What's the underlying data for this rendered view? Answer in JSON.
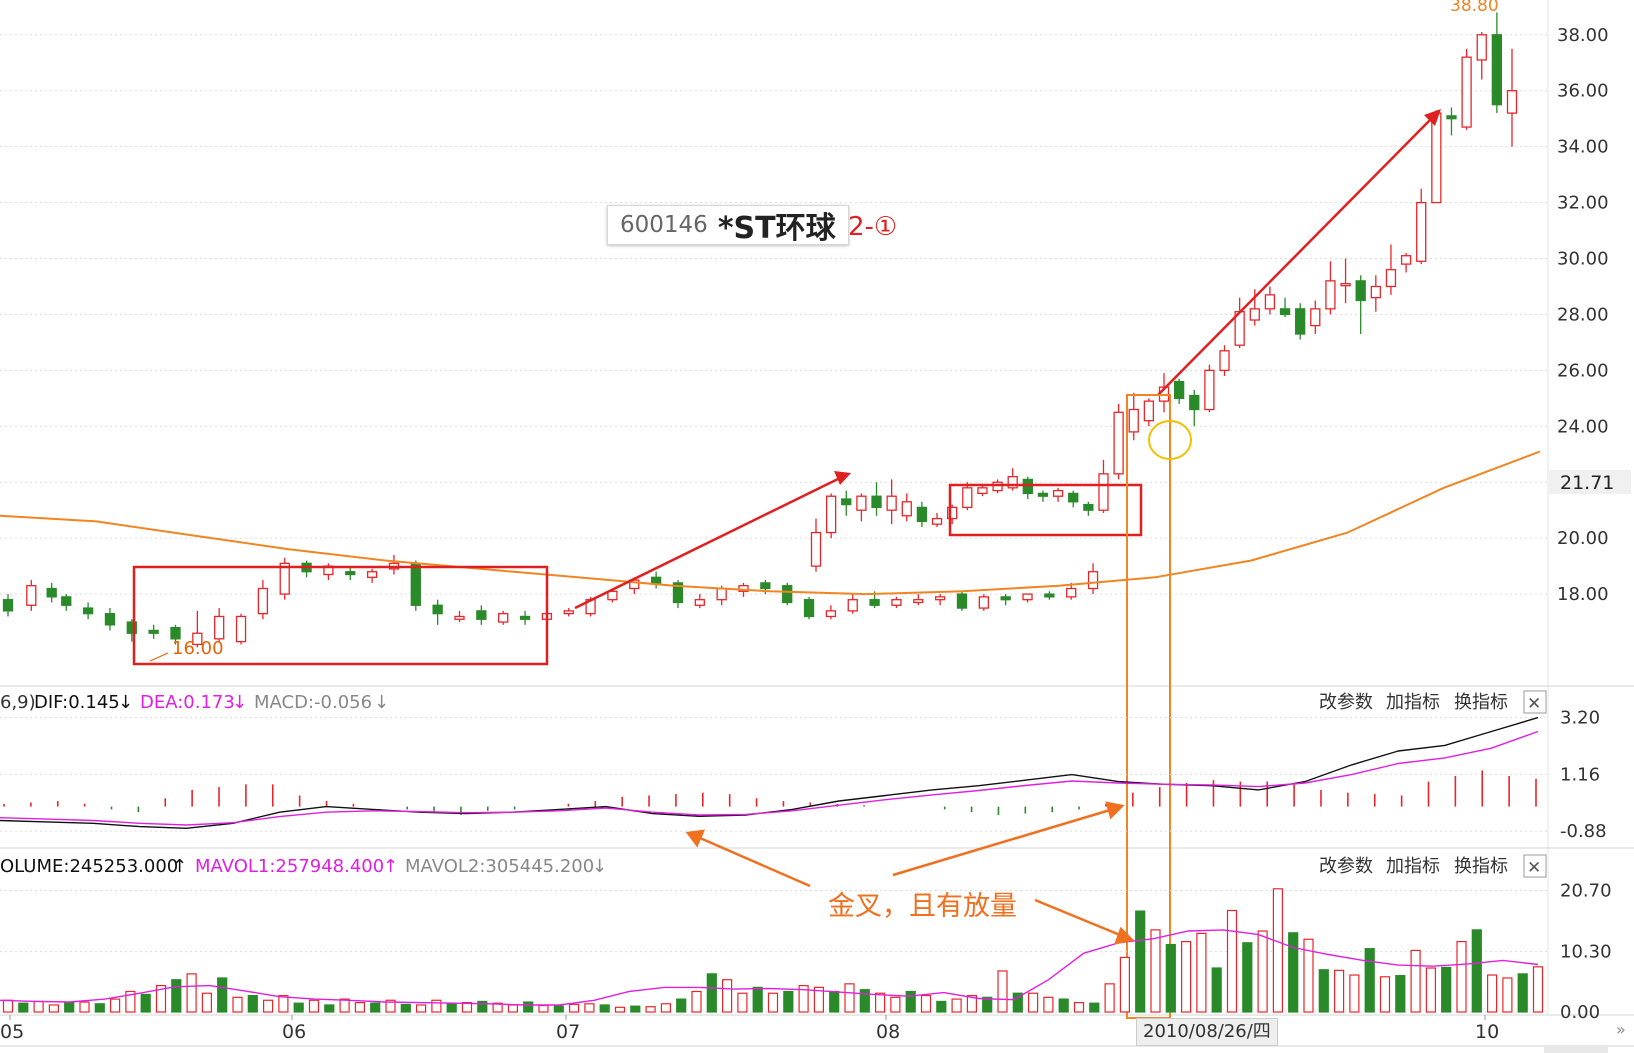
{
  "title": {
    "code": "600146",
    "name": "*ST环球",
    "figure_label": "2-①"
  },
  "annotation": "金叉，且有放量",
  "date_cursor": "2010/08/26/四",
  "price_marks": {
    "high_label": "38.80",
    "low_label": "16.00",
    "last_price": "21.71"
  },
  "toolbar_buttons": [
    "改参数",
    "加指标",
    "换指标"
  ],
  "close_symbol": "✕",
  "colors": {
    "up": "#e8262a",
    "down": "#2a8a2a",
    "ma": "#f08522",
    "dif": "#111111",
    "dea": "#e020e0",
    "box_red": "#e02020",
    "annot_orange": "#f07020",
    "circle": "#f0c000"
  },
  "chart_data": [
    {
      "type": "candlestick",
      "panel": "price",
      "ytick_labels": [
        "38.00",
        "36.00",
        "34.00",
        "32.00",
        "30.00",
        "28.00",
        "26.00",
        "24.00",
        "20.00",
        "18.00"
      ],
      "ylim": [
        15.5,
        38.6
      ],
      "xtick_labels": [
        "05",
        "06",
        "07",
        "08",
        "10"
      ],
      "x_positions": [
        0,
        1.6,
        3,
        4,
        5.5,
        7,
        8.5,
        10,
        11.5,
        13,
        14.5,
        16,
        17.5,
        19,
        20.5,
        22,
        23.5,
        25,
        26.5,
        28,
        29.5,
        31,
        32.5,
        34,
        35.5,
        37,
        38.5,
        40,
        41.5,
        43,
        44.5,
        46,
        47.5,
        49,
        50.5,
        52,
        53.5,
        55,
        56.5,
        58,
        59.5,
        61,
        62.5,
        64,
        65.5,
        67,
        68.5,
        70,
        71.5,
        73,
        74.5,
        76,
        77.5,
        79,
        80.5,
        82,
        83.5,
        85,
        86.5,
        88,
        89.5,
        91,
        92.5,
        94,
        95.5,
        97,
        98.5,
        100,
        101.5,
        103,
        104.5
      ],
      "candles": [
        [
          17.8,
          17.4,
          18,
          17.2
        ],
        [
          17.6,
          18.3,
          18.5,
          17.4
        ],
        [
          18.2,
          17.9,
          18.4,
          17.7
        ],
        [
          17.9,
          17.6,
          18,
          17.4
        ],
        [
          17.5,
          17.3,
          17.7,
          17.1
        ],
        [
          17.3,
          16.9,
          17.5,
          16.7
        ],
        [
          17,
          16.6,
          17.1,
          16.3
        ],
        [
          16.7,
          16.6,
          16.9,
          16.4
        ],
        [
          16.8,
          16.4,
          16.9,
          16.2
        ],
        [
          16.2,
          16.6,
          17.4,
          16.1
        ],
        [
          16.4,
          17.2,
          17.5,
          16.3
        ],
        [
          16.3,
          17.2,
          17.3,
          16.2
        ],
        [
          17.3,
          18.2,
          18.5,
          17.1
        ],
        [
          18,
          19.1,
          19.3,
          17.8
        ],
        [
          19.1,
          18.8,
          19.2,
          18.6
        ],
        [
          18.7,
          19,
          19.1,
          18.5
        ],
        [
          18.8,
          18.7,
          19,
          18.5
        ],
        [
          18.6,
          18.8,
          18.9,
          18.4
        ],
        [
          18.9,
          19.1,
          19.4,
          18.7
        ],
        [
          19.1,
          17.6,
          19.2,
          17.4
        ],
        [
          17.6,
          17.3,
          17.8,
          16.9
        ],
        [
          17.1,
          17.2,
          17.4,
          17
        ],
        [
          17.4,
          17.1,
          17.6,
          16.9
        ],
        [
          17,
          17.3,
          17.4,
          16.9
        ],
        [
          17.2,
          17.1,
          17.4,
          16.9
        ],
        [
          17.1,
          17.3,
          17.4,
          17
        ],
        [
          17.3,
          17.4,
          17.5,
          17.2
        ],
        [
          17.3,
          17.8,
          17.9,
          17.2
        ],
        [
          17.8,
          18.1,
          18.2,
          17.7
        ],
        [
          18.2,
          18.5,
          18.6,
          18
        ],
        [
          18.6,
          18.4,
          18.8,
          18.2
        ],
        [
          18.4,
          17.7,
          18.5,
          17.5
        ],
        [
          17.6,
          17.8,
          18,
          17.5
        ],
        [
          17.8,
          18.2,
          18.3,
          17.6
        ],
        [
          18.1,
          18.3,
          18.4,
          17.9
        ],
        [
          18.4,
          18.2,
          18.5,
          18
        ],
        [
          18.3,
          17.7,
          18.4,
          17.6
        ],
        [
          17.8,
          17.2,
          17.9,
          17.1
        ],
        [
          17.2,
          17.4,
          17.6,
          17.1
        ],
        [
          17.4,
          17.8,
          18,
          17.3
        ],
        [
          17.8,
          17.6,
          18.1,
          17.5
        ],
        [
          17.6,
          17.8,
          17.9,
          17.5
        ],
        [
          17.7,
          17.8,
          18,
          17.6
        ],
        [
          17.8,
          17.9,
          18,
          17.6
        ],
        [
          18,
          17.5,
          18.1,
          17.4
        ],
        [
          17.5,
          17.9,
          18,
          17.4
        ],
        [
          17.9,
          17.8,
          18,
          17.6
        ],
        [
          17.8,
          18,
          18,
          17.7
        ],
        [
          18,
          17.9,
          18.1,
          17.8
        ],
        [
          17.9,
          18.2,
          18.4,
          17.8
        ],
        [
          18.2,
          18.8,
          19.1,
          18
        ]
      ],
      "series": [
        {
          "name": "",
          "values": [
            20.8,
            20.6,
            20.1,
            19.6,
            19.2,
            18.9,
            18.6,
            18.3,
            18.1,
            18.0,
            18.1,
            18.3,
            18.6,
            19.2,
            20.2,
            21.8,
            23.1
          ]
        }
      ]
    },
    {
      "type": "macd",
      "panel": "macd",
      "legend_prefix": "6,9)",
      "dif_label": "DIF:0.145",
      "dea_label": "DEA:0.173",
      "macd_label": "MACD:-0.056",
      "arrow_down": "↓",
      "ytick_labels": [
        "3.20",
        "1.16",
        "-0.88"
      ],
      "ylim": [
        -1.2,
        3.4
      ],
      "dif": [
        -0.5,
        -0.55,
        -0.6,
        -0.72,
        -0.78,
        -0.6,
        -0.2,
        0.0,
        -0.1,
        -0.2,
        -0.25,
        -0.2,
        -0.1,
        0.0,
        -0.25,
        -0.35,
        -0.3,
        -0.1,
        0.2,
        0.4,
        0.6,
        0.75,
        0.95,
        1.15,
        0.9,
        0.8,
        0.75,
        0.6,
        0.9,
        1.5,
        2.0,
        2.2,
        2.7,
        3.2
      ],
      "dea": [
        -0.4,
        -0.45,
        -0.5,
        -0.6,
        -0.66,
        -0.58,
        -0.36,
        -0.2,
        -0.15,
        -0.18,
        -0.22,
        -0.2,
        -0.15,
        -0.05,
        -0.2,
        -0.3,
        -0.28,
        -0.15,
        0.05,
        0.25,
        0.42,
        0.58,
        0.76,
        0.92,
        0.85,
        0.8,
        0.78,
        0.72,
        0.85,
        1.15,
        1.55,
        1.75,
        2.1,
        2.7
      ],
      "hist": [
        0.1,
        0.15,
        0.2,
        0.1,
        -0.1,
        -0.2,
        0.3,
        0.6,
        0.7,
        0.8,
        0.8,
        0.4,
        0.2,
        0.1,
        0.0,
        -0.1,
        -0.2,
        -0.3,
        -0.15,
        -0.1,
        0.0,
        0.1,
        0.2,
        0.35,
        0.4,
        0.45,
        0.5,
        0.45,
        0.3,
        0.2,
        0.15,
        0.1,
        0.05,
        0.0,
        0.0,
        -0.1,
        -0.2,
        -0.3,
        -0.25,
        -0.2,
        -0.1,
        0.1,
        0.5,
        0.7,
        0.85,
        0.95,
        0.9,
        0.9,
        0.8,
        0.6,
        0.5,
        0.45,
        0.4,
        0.9,
        1.1,
        1.3,
        1.1,
        1.0
      ]
    },
    {
      "type": "bar",
      "panel": "volume",
      "volume_label": "OLUME:245253.000",
      "mavol1_label": "MAVOL1:257948.400",
      "mavol2_label": "MAVOL2:305445.200",
      "arrow_up": "↑",
      "arrow_down": "↓",
      "ytick_labels": [
        "20.70",
        "10.30",
        "0.00"
      ],
      "ylim": [
        0,
        22.5
      ],
      "values": [
        2,
        1.5,
        1.8,
        1.2,
        1.6,
        1.7,
        1.4,
        2.2,
        3.5,
        3,
        4.5,
        5.5,
        6.5,
        3.2,
        5.8,
        2.5,
        2.8,
        2,
        2.8,
        1.5,
        2,
        1.2,
        2.2,
        1.6,
        1.5,
        2,
        1.3,
        1.2,
        2,
        1.4,
        1.6,
        1.8,
        1.5,
        1.2,
        1.7,
        1.1,
        1,
        1.3,
        1.4,
        1.2,
        0.8,
        1,
        0.9,
        1.4,
        2.2,
        3.5,
        6.5,
        5.5,
        3.2,
        4.2,
        3.2,
        3.5,
        4.5,
        4.2,
        3.5,
        4.8,
        3.8,
        3.2,
        2.5,
        3.5,
        2.8,
        1.8,
        2.2,
        2.8,
        2.5,
        7,
        3.2,
        3.2,
        2.5,
        2.2,
        1.6,
        1.5,
        4.8,
        9.3,
        17.2,
        14,
        11.5,
        12,
        13.4,
        7.5,
        17.3,
        11.8,
        13.8,
        21,
        13.5,
        12.4,
        7.2,
        7.1,
        6.3,
        10.8,
        6,
        6.2,
        10.5,
        7.5,
        7.6,
        12,
        14,
        6.3,
        5.8,
        6.5,
        7.7
      ],
      "series": [
        {
          "name": "MAVOL1",
          "values": [
            2,
            1.8,
            1.7,
            2.2,
            3.2,
            4.3,
            4.5,
            3.6,
            2.6,
            2.2,
            2,
            1.7,
            1.6,
            1.5,
            1.4,
            1.2,
            1.2,
            2,
            3.5,
            4.2,
            4.2,
            3.9,
            4,
            3.8,
            3.4,
            3,
            2.7,
            3.3,
            2.3,
            2.1,
            5.5,
            10,
            11.8,
            12.5,
            13.8,
            14,
            13.2,
            11,
            9.8,
            8.8,
            8,
            7.8,
            8.2,
            8.8,
            8.1
          ]
        }
      ]
    }
  ]
}
